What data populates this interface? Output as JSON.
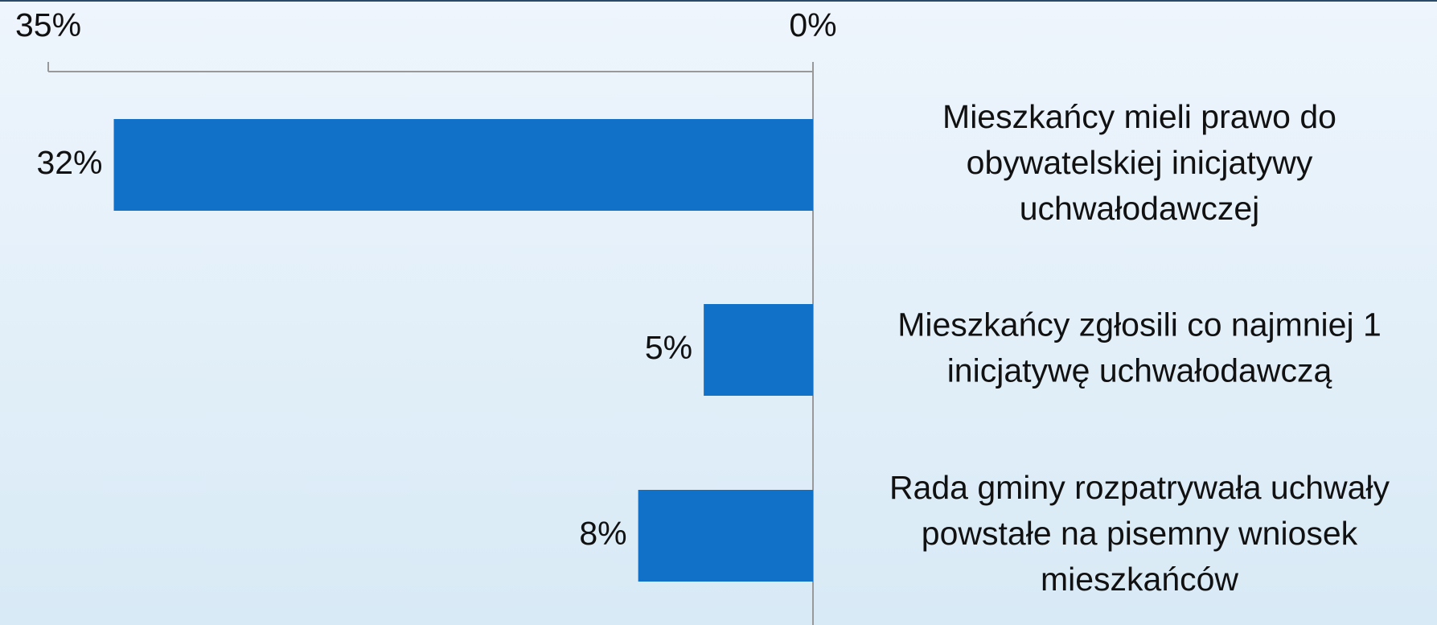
{
  "chart_data": {
    "type": "bar",
    "orientation": "horizontal",
    "categories": [
      "Mieszkańcy mieli prawo do\nobywatelskiej inicjatywy\nuchwałodawczej",
      "Mieszkańcy zgłosili co najmniej 1\ninicjatywę uchwałodawczą",
      "Rada gminy rozpatrywała uchwały\npowstałe na pisemny wniosek\nmieszkańców"
    ],
    "values": [
      32,
      5,
      8
    ],
    "value_labels": [
      "32%",
      "5%",
      "8%"
    ],
    "color": "#1170c8",
    "xlim": [
      35,
      0
    ],
    "xticks": [
      {
        "value": 35,
        "label": "35%"
      },
      {
        "value": 0,
        "label": "0%"
      }
    ]
  }
}
